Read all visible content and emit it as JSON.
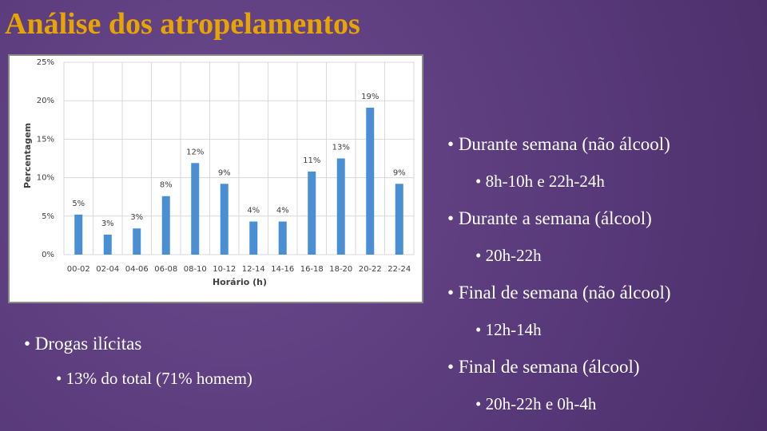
{
  "header": {
    "title": "Análise dos atropelamentos"
  },
  "chart_data": {
    "type": "bar",
    "x_label": "Horário (h)",
    "y_label": "Percentagem",
    "categories": [
      "00-02",
      "02-04",
      "04-06",
      "06-08",
      "08-10",
      "10-12",
      "12-14",
      "14-16",
      "16-18",
      "18-20",
      "20-22",
      "22-24"
    ],
    "values": [
      5.2,
      2.6,
      3.4,
      7.6,
      11.9,
      9.2,
      4.3,
      4.3,
      10.8,
      12.5,
      19.1,
      9.2
    ],
    "value_labels": [
      "5%",
      "3%",
      "3%",
      "8%",
      "12%",
      "9%",
      "4%",
      "4%",
      "11%",
      "13%",
      "19%",
      "9%"
    ],
    "color": "#4a8fd4",
    "ylim": [
      0,
      25
    ],
    "yticks": [
      {
        "value": 0,
        "label": "0%"
      },
      {
        "value": 5,
        "label": "5%"
      },
      {
        "value": 10,
        "label": "10%"
      },
      {
        "value": 15,
        "label": "15%"
      },
      {
        "value": 20,
        "label": "20%"
      },
      {
        "value": 25,
        "label": "25%"
      }
    ],
    "grid": true
  },
  "left_bullets": [
    {
      "text": "Drogas ilícitas",
      "level": 1
    },
    {
      "text": "13% do total (71% homem)",
      "level": 2
    }
  ],
  "right_bullets": [
    {
      "text": "Durante semana (não álcool)",
      "level": 1
    },
    {
      "text": "8h-10h e 22h-24h",
      "level": 2
    },
    {
      "text": "Durante a semana (álcool)",
      "level": 1
    },
    {
      "text": "20h-22h",
      "level": 2
    },
    {
      "text": "Final de semana (não álcool)",
      "level": 1
    },
    {
      "text": "12h-14h",
      "level": 2
    },
    {
      "text": "Final de semana (álcool)",
      "level": 1
    },
    {
      "text": "20h-22h e 0h-4h",
      "level": 2
    }
  ]
}
